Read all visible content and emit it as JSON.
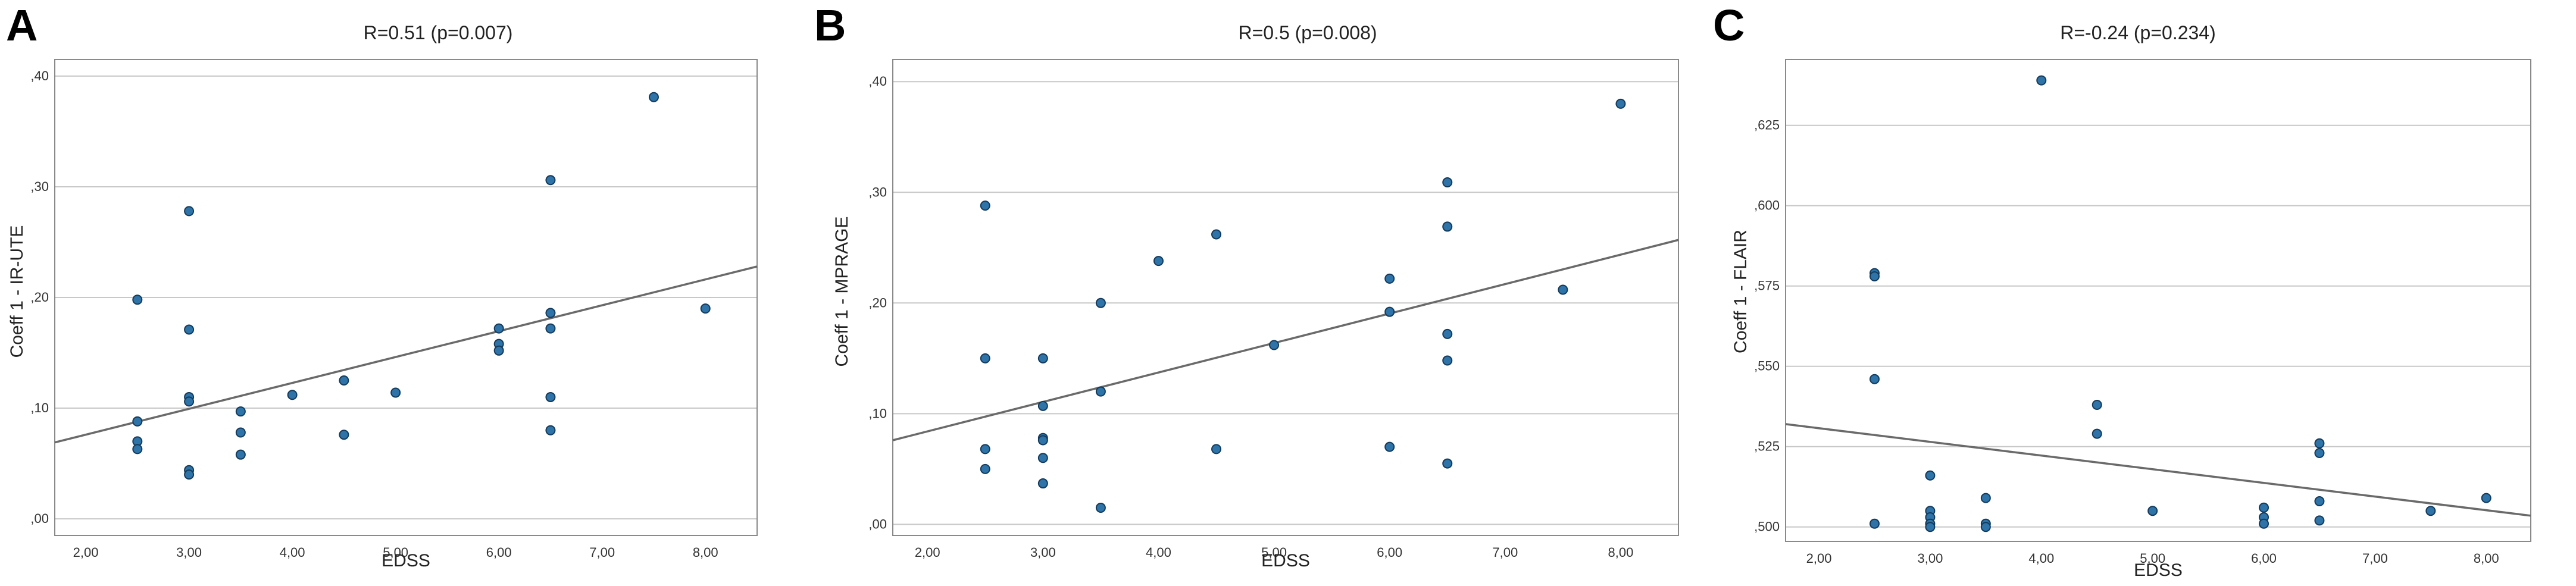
{
  "panel_letters": [
    "A",
    "B",
    "C"
  ],
  "chart_data": [
    {
      "type": "scatter",
      "title": "R=0.51 (p=0.007)",
      "xlabel": "EDSS",
      "ylabel": "Coeff 1 - IR-UTE",
      "xlim": [
        1.7,
        8.5
      ],
      "ylim": [
        -0.015,
        0.415
      ],
      "xticks": [
        2,
        3,
        4,
        5,
        6,
        7,
        8
      ],
      "xtick_labels": [
        "2,00",
        "3,00",
        "4,00",
        "5,00",
        "6,00",
        "7,00",
        "8,00"
      ],
      "yticks": [
        0,
        0.1,
        0.2,
        0.3,
        0.4
      ],
      "ytick_labels": [
        ",00",
        ",10",
        ",20",
        ",30",
        ",40"
      ],
      "grid": "horizontal",
      "points": [
        {
          "x": 2.5,
          "y": 0.198
        },
        {
          "x": 2.5,
          "y": 0.088
        },
        {
          "x": 2.5,
          "y": 0.07
        },
        {
          "x": 2.5,
          "y": 0.063
        },
        {
          "x": 3.0,
          "y": 0.278
        },
        {
          "x": 3.0,
          "y": 0.171
        },
        {
          "x": 3.0,
          "y": 0.11
        },
        {
          "x": 3.0,
          "y": 0.106
        },
        {
          "x": 3.0,
          "y": 0.044
        },
        {
          "x": 3.0,
          "y": 0.04
        },
        {
          "x": 3.5,
          "y": 0.097
        },
        {
          "x": 3.5,
          "y": 0.078
        },
        {
          "x": 3.5,
          "y": 0.058
        },
        {
          "x": 4.0,
          "y": 0.112
        },
        {
          "x": 4.5,
          "y": 0.125
        },
        {
          "x": 4.5,
          "y": 0.076
        },
        {
          "x": 5.0,
          "y": 0.114
        },
        {
          "x": 6.0,
          "y": 0.172
        },
        {
          "x": 6.0,
          "y": 0.158
        },
        {
          "x": 6.0,
          "y": 0.152
        },
        {
          "x": 6.5,
          "y": 0.306
        },
        {
          "x": 6.5,
          "y": 0.186
        },
        {
          "x": 6.5,
          "y": 0.172
        },
        {
          "x": 6.5,
          "y": 0.11
        },
        {
          "x": 6.5,
          "y": 0.08
        },
        {
          "x": 7.5,
          "y": 0.381
        },
        {
          "x": 8.0,
          "y": 0.19
        }
      ],
      "fit_line": {
        "x": [
          1.7,
          8.5
        ],
        "y": [
          0.069,
          0.228
        ]
      }
    },
    {
      "type": "scatter",
      "title": "R=0.5 (p=0.008)",
      "xlabel": "EDSS",
      "ylabel": "Coeff 1 - MPRAGE",
      "xlim": [
        1.7,
        8.5
      ],
      "ylim": [
        -0.01,
        0.42
      ],
      "xticks": [
        2,
        3,
        4,
        5,
        6,
        7,
        8
      ],
      "xtick_labels": [
        "2,00",
        "3,00",
        "4,00",
        "5,00",
        "6,00",
        "7,00",
        "8,00"
      ],
      "yticks": [
        0,
        0.1,
        0.2,
        0.3,
        0.4
      ],
      "ytick_labels": [
        ",00",
        ",10",
        ",20",
        ",30",
        ",40"
      ],
      "grid": "horizontal",
      "points": [
        {
          "x": 2.5,
          "y": 0.288
        },
        {
          "x": 2.5,
          "y": 0.15
        },
        {
          "x": 2.5,
          "y": 0.068
        },
        {
          "x": 2.5,
          "y": 0.05
        },
        {
          "x": 3.0,
          "y": 0.15
        },
        {
          "x": 3.0,
          "y": 0.107
        },
        {
          "x": 3.0,
          "y": 0.078
        },
        {
          "x": 3.0,
          "y": 0.076
        },
        {
          "x": 3.0,
          "y": 0.06
        },
        {
          "x": 3.0,
          "y": 0.037
        },
        {
          "x": 3.5,
          "y": 0.2
        },
        {
          "x": 3.5,
          "y": 0.12
        },
        {
          "x": 3.5,
          "y": 0.015
        },
        {
          "x": 4.0,
          "y": 0.238
        },
        {
          "x": 4.5,
          "y": 0.262
        },
        {
          "x": 4.5,
          "y": 0.068
        },
        {
          "x": 5.0,
          "y": 0.162
        },
        {
          "x": 6.0,
          "y": 0.222
        },
        {
          "x": 6.0,
          "y": 0.192
        },
        {
          "x": 6.0,
          "y": 0.07
        },
        {
          "x": 6.5,
          "y": 0.309
        },
        {
          "x": 6.5,
          "y": 0.269
        },
        {
          "x": 6.5,
          "y": 0.172
        },
        {
          "x": 6.5,
          "y": 0.148
        },
        {
          "x": 6.5,
          "y": 0.055
        },
        {
          "x": 7.5,
          "y": 0.212
        },
        {
          "x": 8.0,
          "y": 0.38
        }
      ],
      "fit_line": {
        "x": [
          1.7,
          8.5
        ],
        "y": [
          0.076,
          0.257
        ]
      }
    },
    {
      "type": "scatter",
      "title": "R=-0.24 (p=0.234)",
      "xlabel": "EDSS",
      "ylabel": "Coeff 1 - FLAIR",
      "xlim": [
        1.7,
        8.4
      ],
      "ylim": [
        0.4955,
        0.6455
      ],
      "xticks": [
        2,
        3,
        4,
        5,
        6,
        7,
        8
      ],
      "xtick_labels": [
        "2,00",
        "3,00",
        "4,00",
        "5,00",
        "6,00",
        "7,00",
        "8,00"
      ],
      "yticks": [
        0.5,
        0.525,
        0.55,
        0.575,
        0.6,
        0.625
      ],
      "ytick_labels": [
        ",500",
        ",525",
        ",550",
        ",575",
        ",600",
        ",625"
      ],
      "grid": "horizontal",
      "points": [
        {
          "x": 2.5,
          "y": 0.579
        },
        {
          "x": 2.5,
          "y": 0.578
        },
        {
          "x": 2.5,
          "y": 0.546
        },
        {
          "x": 2.5,
          "y": 0.501
        },
        {
          "x": 3.0,
          "y": 0.516
        },
        {
          "x": 3.0,
          "y": 0.505
        },
        {
          "x": 3.0,
          "y": 0.503
        },
        {
          "x": 3.0,
          "y": 0.501
        },
        {
          "x": 3.0,
          "y": 0.5
        },
        {
          "x": 3.5,
          "y": 0.509
        },
        {
          "x": 3.5,
          "y": 0.501
        },
        {
          "x": 3.5,
          "y": 0.5
        },
        {
          "x": 4.0,
          "y": 0.639
        },
        {
          "x": 4.5,
          "y": 0.538
        },
        {
          "x": 4.5,
          "y": 0.529
        },
        {
          "x": 5.0,
          "y": 0.505
        },
        {
          "x": 6.0,
          "y": 0.506
        },
        {
          "x": 6.0,
          "y": 0.503
        },
        {
          "x": 6.0,
          "y": 0.501
        },
        {
          "x": 6.5,
          "y": 0.526
        },
        {
          "x": 6.5,
          "y": 0.523
        },
        {
          "x": 6.5,
          "y": 0.508
        },
        {
          "x": 6.5,
          "y": 0.502
        },
        {
          "x": 7.5,
          "y": 0.505
        },
        {
          "x": 8.0,
          "y": 0.509
        }
      ],
      "fit_line": {
        "x": [
          1.7,
          8.4
        ],
        "y": [
          0.532,
          0.5035
        ]
      }
    }
  ]
}
